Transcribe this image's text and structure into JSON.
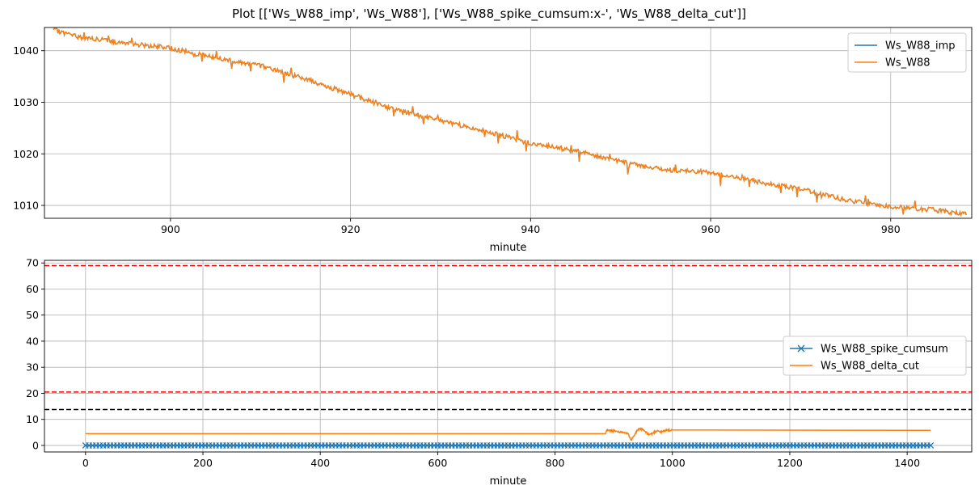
{
  "figure": {
    "title": "Plot [['Ws_W88_imp', 'Ws_W88'], ['Ws_W88_spike_cumsum:x-', 'Ws_W88_delta_cut']]"
  },
  "chart_data": [
    {
      "type": "line",
      "xlabel": "minute",
      "ylabel": "",
      "xlim": [
        886,
        989
      ],
      "ylim": [
        1007.5,
        1044.5
      ],
      "x_ticks": [
        900,
        920,
        940,
        960,
        980
      ],
      "y_ticks": [
        1010,
        1020,
        1030,
        1040
      ],
      "grid": true,
      "legend": "top-right",
      "series": [
        {
          "name": "Ws_W88_imp",
          "color": "#1f77b4",
          "x": [
            887,
            890,
            895,
            900,
            905,
            910,
            915,
            920,
            925,
            930,
            935,
            940,
            945,
            950,
            955,
            960,
            965,
            970,
            975,
            980,
            985,
            988.5
          ],
          "y": [
            1044,
            1042.6,
            1041.5,
            1040.5,
            1038.6,
            1037.1,
            1034.5,
            1031.5,
            1028.6,
            1026.4,
            1024.4,
            1022.0,
            1020.6,
            1018.5,
            1016.9,
            1016.4,
            1014.6,
            1013.2,
            1011.0,
            1009.8,
            1009.1,
            1008.2
          ]
        },
        {
          "name": "Ws_W88",
          "color": "#ff7f0e",
          "x": [
            887,
            890,
            895,
            900,
            905,
            910,
            915,
            920,
            925,
            930,
            935,
            940,
            945,
            950,
            955,
            960,
            965,
            970,
            975,
            980,
            985,
            988.5
          ],
          "y": [
            1044,
            1042.6,
            1041.5,
            1040.5,
            1038.6,
            1037.1,
            1034.5,
            1031.5,
            1028.6,
            1026.4,
            1024.4,
            1022.0,
            1020.6,
            1018.5,
            1016.9,
            1016.4,
            1014.6,
            1013.2,
            1011.0,
            1009.8,
            1009.1,
            1008.2
          ]
        }
      ]
    },
    {
      "type": "line",
      "xlabel": "minute",
      "ylabel": "",
      "xlim": [
        -70,
        1510
      ],
      "ylim": [
        -2.5,
        71
      ],
      "x_ticks": [
        0,
        200,
        400,
        600,
        800,
        1000,
        1200,
        1400
      ],
      "y_ticks": [
        0,
        10,
        20,
        30,
        40,
        50,
        60,
        70
      ],
      "grid": true,
      "legend": "center-right",
      "hlines": [
        {
          "y": 69,
          "color": "#ff0000",
          "style": "dashed"
        },
        {
          "y": 20.5,
          "color": "#ff0000",
          "style": "dashed"
        },
        {
          "y": 13.8,
          "color": "#000000",
          "style": "dashed"
        }
      ],
      "series": [
        {
          "name": "Ws_W88_spike_cumsum",
          "color": "#1f77b4",
          "marker": "x",
          "x_start": 0,
          "x_end": 1440,
          "y": 0
        },
        {
          "name": "Ws_W88_delta_cut",
          "color": "#ff7f0e",
          "x": [
            0,
            886,
            888,
            900,
            910,
            920,
            925,
            930,
            935,
            940,
            945,
            950,
            955,
            960,
            965,
            970,
            975,
            980,
            985,
            990,
            995,
            1000,
            1440
          ],
          "y": [
            4.5,
            4.5,
            5.8,
            5.6,
            5.2,
            5.0,
            4.2,
            2.1,
            4.0,
            5.8,
            6.3,
            6.0,
            5.0,
            4.2,
            4.5,
            5.2,
            5.8,
            5.0,
            5.5,
            5.9,
            5.8,
            5.8,
            5.8
          ]
        }
      ]
    }
  ]
}
